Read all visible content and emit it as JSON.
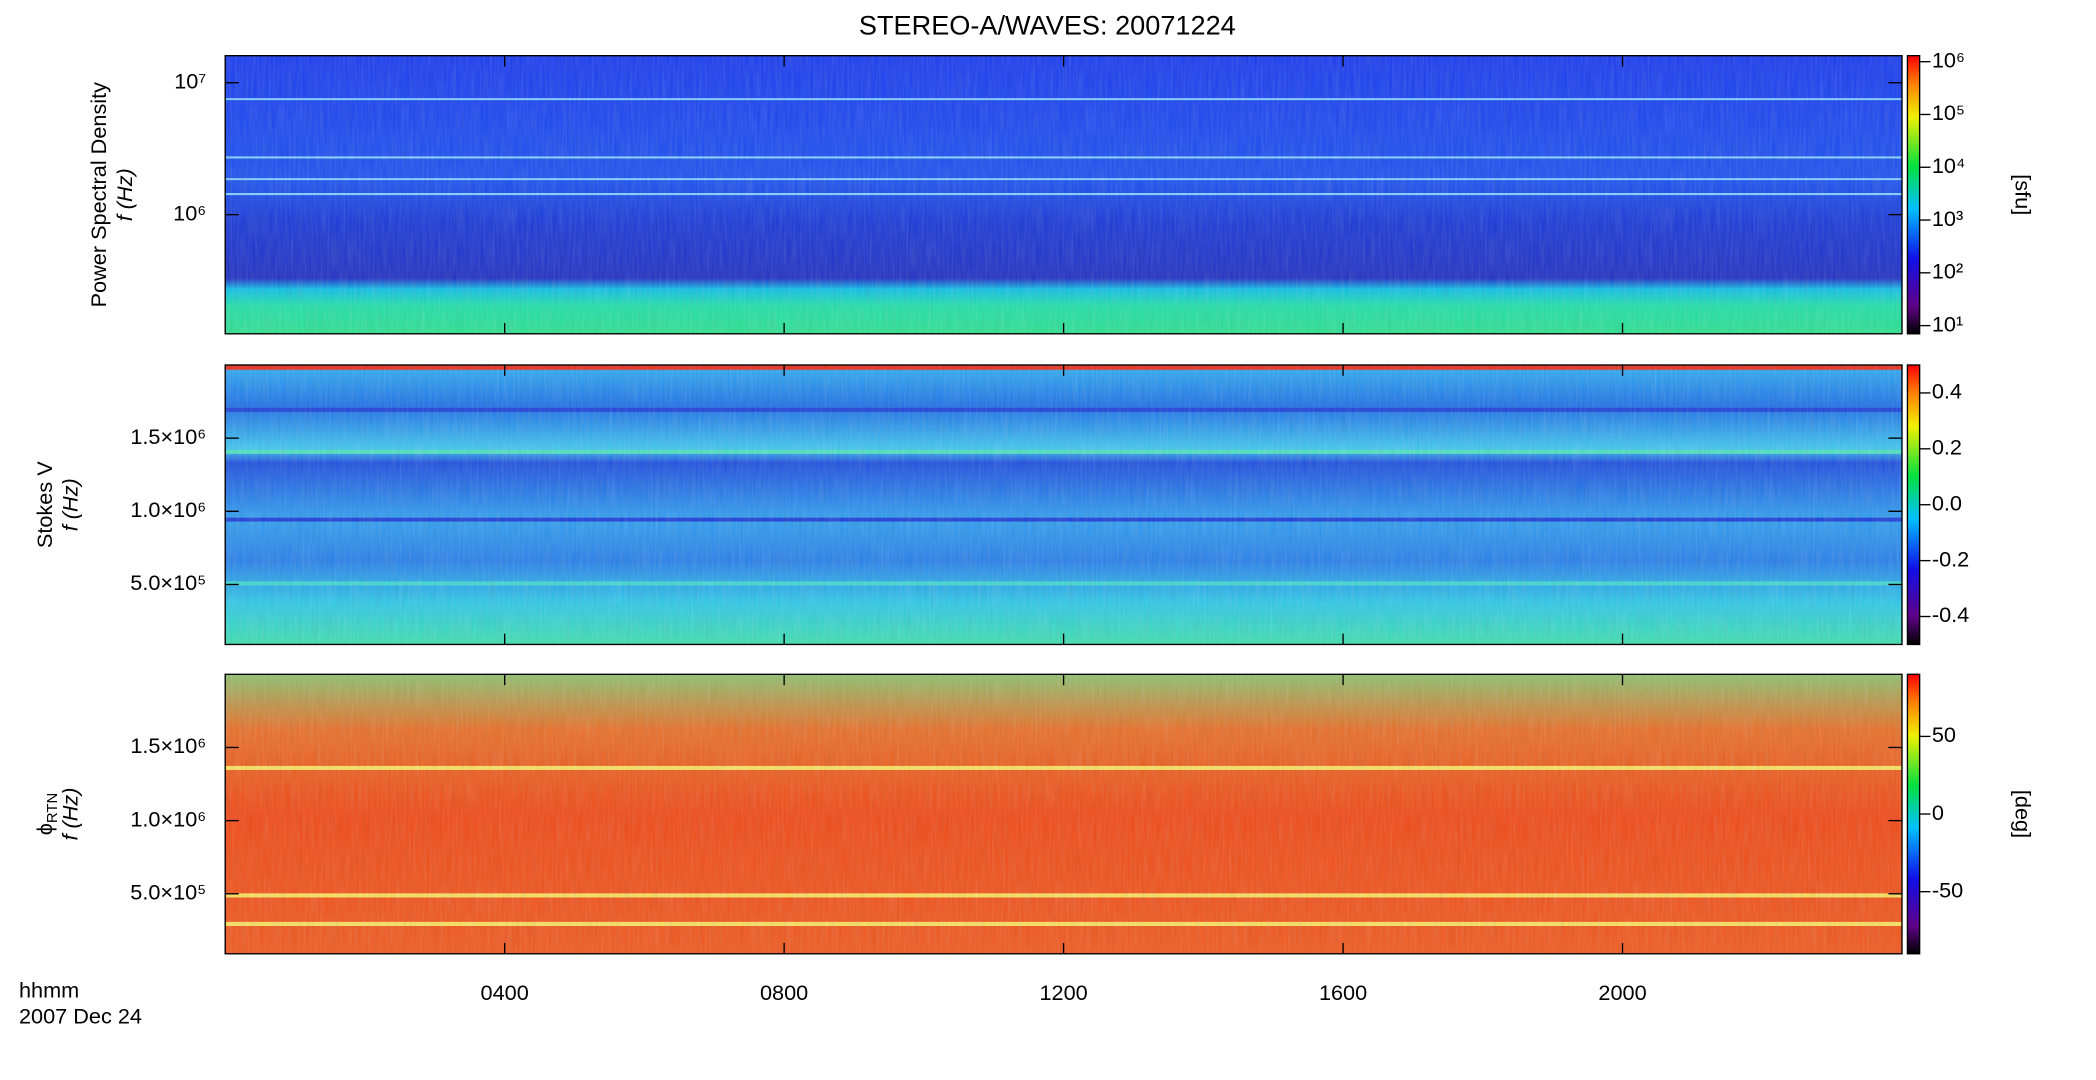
{
  "title": "STEREO-A/WAVES: 20071224",
  "x_axis": {
    "xlim": [
      0,
      24
    ],
    "xticks": [
      {
        "value": 4,
        "label": "0400"
      },
      {
        "value": 8,
        "label": "0800"
      },
      {
        "value": 12,
        "label": "1200"
      },
      {
        "value": 16,
        "label": "1600"
      },
      {
        "value": 20,
        "label": "2000"
      }
    ],
    "label": "hhmm",
    "date": "2007 Dec 24"
  },
  "chart_data": [
    {
      "type": "spectrogram",
      "quantity": "Power Spectral Density",
      "ylabel": "f (Hz)",
      "log_y": true,
      "ylim": [
        125000,
        16025000
      ],
      "yticks": [
        {
          "value": 1000000,
          "label": "10⁶"
        },
        {
          "value": 10000000,
          "label": "10⁷"
        }
      ],
      "colorbar": {
        "log": true,
        "clim": [
          7,
          1300000
        ],
        "ticks": [
          {
            "value": 10,
            "label": "10¹"
          },
          {
            "value": 100,
            "label": "10²"
          },
          {
            "value": 1000,
            "label": "10³"
          },
          {
            "value": 10000,
            "label": "10⁴"
          },
          {
            "value": 100000,
            "label": "10⁵"
          },
          {
            "value": 1000000,
            "label": "10⁶"
          }
        ],
        "label": "[sfu]"
      }
    },
    {
      "type": "spectrogram",
      "quantity": "Stokes V",
      "ylabel": "f (Hz)",
      "log_y": false,
      "ylim": [
        90000,
        2000000
      ],
      "yticks": [
        {
          "value": 500000,
          "label": "5.0×10⁵"
        },
        {
          "value": 1000000,
          "label": "1.0×10⁶"
        },
        {
          "value": 1500000,
          "label": "1.5×10⁶"
        }
      ],
      "colorbar": {
        "log": false,
        "clim": [
          -0.5,
          0.5
        ],
        "ticks": [
          -0.4,
          -0.2,
          {
            "value": 0,
            "label": "0.0"
          },
          0.2,
          0.4
        ]
      }
    },
    {
      "type": "spectrogram",
      "quantity": {
        "symbol": "ϕ",
        "subscript": "RTN"
      },
      "ylabel": "f (Hz)",
      "log_y": false,
      "ylim": [
        90000,
        2000000
      ],
      "yticks": [
        {
          "value": 500000,
          "label": "5.0×10⁵"
        },
        {
          "value": 1000000,
          "label": "1.0×10⁶"
        },
        {
          "value": 1500000,
          "label": "1.5×10⁶"
        }
      ],
      "colorbar": {
        "log": false,
        "clim": [
          -90,
          90
        ],
        "ticks": [
          -50,
          0,
          50
        ],
        "label": "[deg]"
      }
    }
  ]
}
